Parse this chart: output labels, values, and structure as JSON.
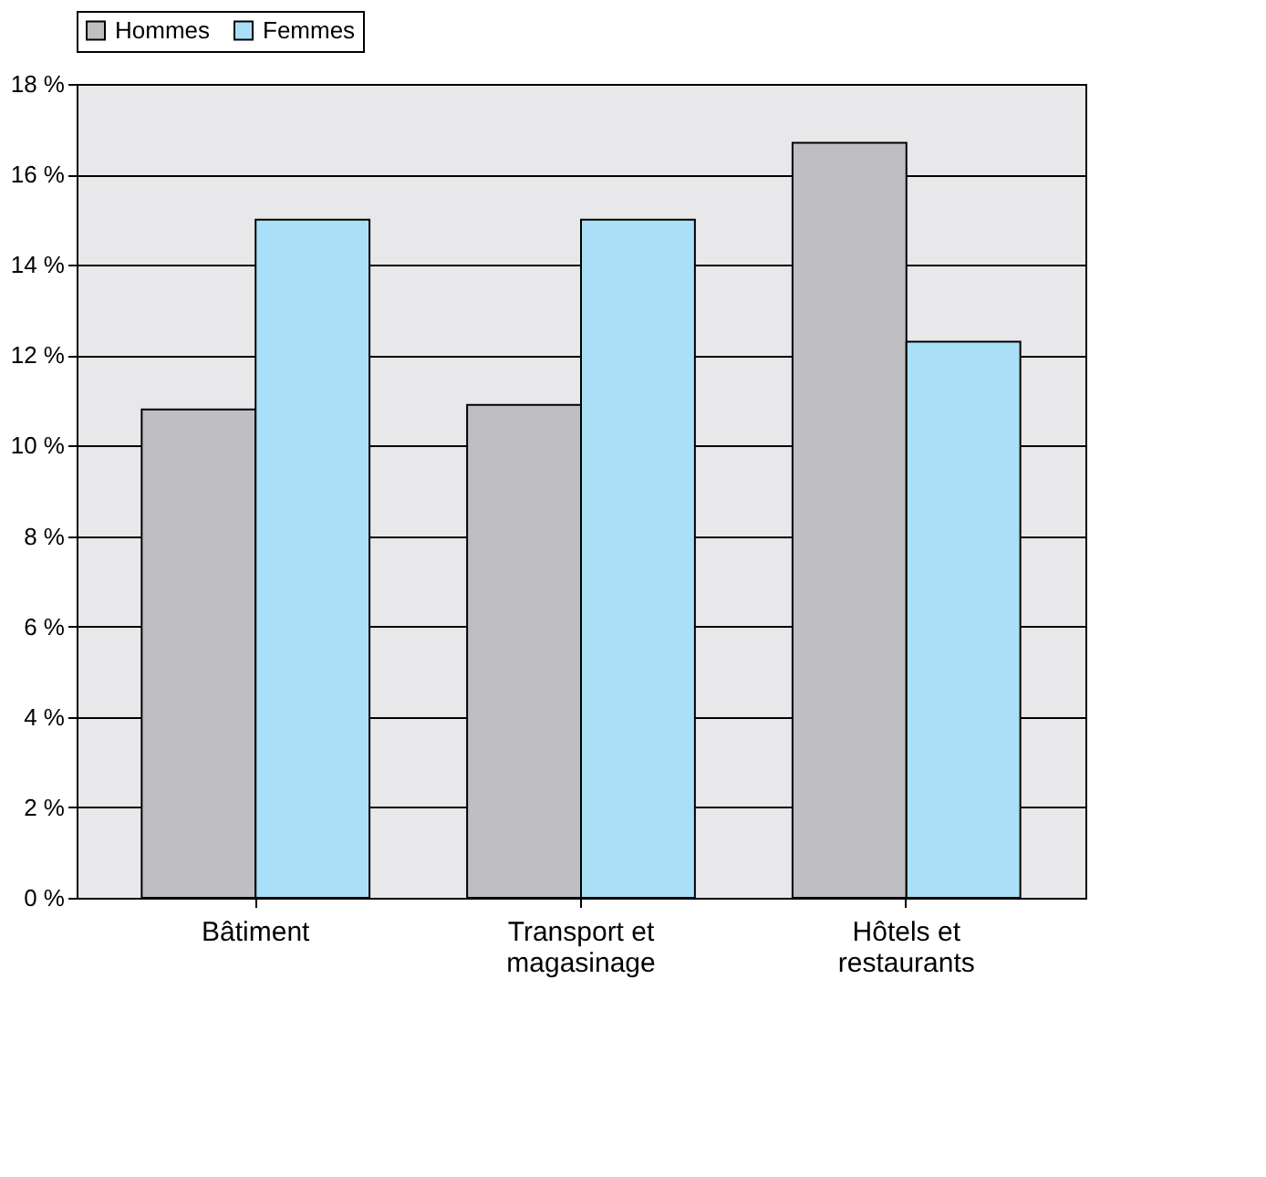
{
  "chart_data": {
    "type": "bar",
    "categories": [
      "Bâtiment",
      "Transport et magasinage",
      "Hôtels et restaurants"
    ],
    "series": [
      {
        "name": "Hommes",
        "color": "#bfbfc3",
        "values": [
          10.8,
          10.9,
          16.7
        ]
      },
      {
        "name": "Femmes",
        "color": "#aadff8",
        "values": [
          15.0,
          15.0,
          12.3
        ]
      }
    ],
    "ylim": [
      0,
      18
    ],
    "yticks": [
      {
        "value": 0,
        "label": "0 %"
      },
      {
        "value": 2,
        "label": "2 %"
      },
      {
        "value": 4,
        "label": "4 %"
      },
      {
        "value": 6,
        "label": "6 %"
      },
      {
        "value": 8,
        "label": "8 %"
      },
      {
        "value": 10,
        "label": "10 %"
      },
      {
        "value": 12,
        "label": "12 %"
      },
      {
        "value": 14,
        "label": "14 %"
      },
      {
        "value": 16,
        "label": "16 %"
      },
      {
        "value": 18,
        "label": "18 %"
      }
    ],
    "grid": "y",
    "legend": "top"
  }
}
